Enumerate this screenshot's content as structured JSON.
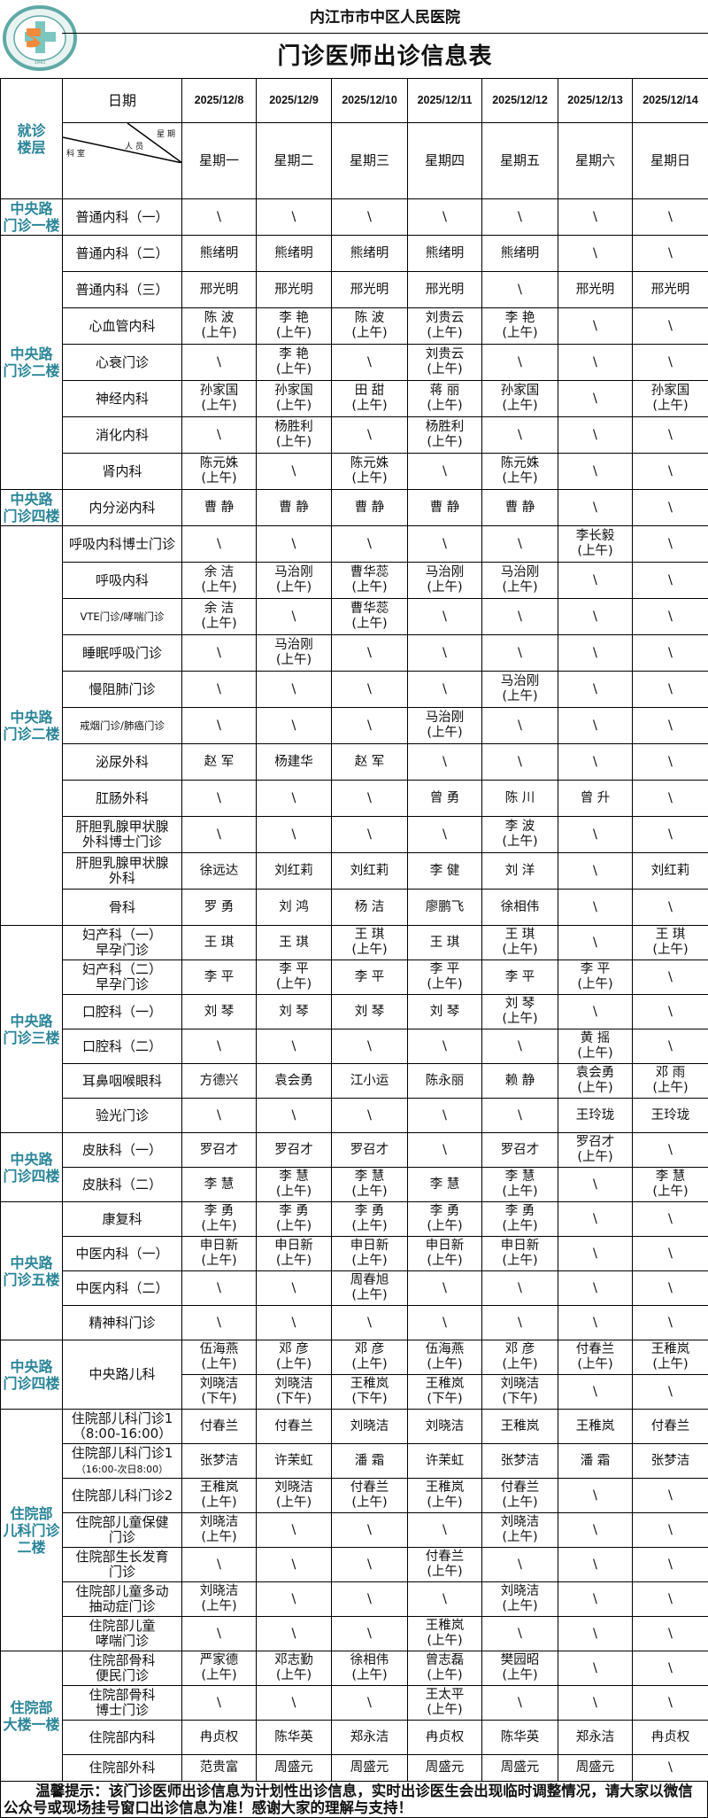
{
  "header": {
    "hospital_name": "内江市市中区人民医院",
    "title": "门诊医师出诊信息表",
    "logo_text": "内江市市中区人民医院",
    "logo_year": "1943",
    "accent_color": "#2a8598"
  },
  "table_header": {
    "floor_label": "就诊\n楼层",
    "date_label": "日期",
    "diag_weekday": "星期",
    "diag_staff": "人员",
    "diag_dept": "科室",
    "dates": [
      "2025/12/8",
      "2025/12/9",
      "2025/12/10",
      "2025/12/11",
      "2025/12/12",
      "2025/12/13",
      "2025/12/14"
    ],
    "weekdays": [
      "星期一",
      "星期二",
      "星期三",
      "星期四",
      "星期五",
      "星期六",
      "星期日"
    ]
  },
  "groups": [
    {
      "floor": "中央路\n门诊一楼",
      "rows": [
        {
          "dept": "普通内科（一）",
          "cells": [
            "\\",
            "\\",
            "\\",
            "\\",
            "\\",
            "\\",
            "\\"
          ]
        }
      ]
    },
    {
      "floor": "中央路\n门诊二楼",
      "rows": [
        {
          "dept": "普通内科（二）",
          "cells": [
            "熊绪明",
            "熊绪明",
            "熊绪明",
            "熊绪明",
            "熊绪明",
            "\\",
            "\\"
          ]
        },
        {
          "dept": "普通内科（三）",
          "cells": [
            "邢光明",
            "邢光明",
            "邢光明",
            "邢光明",
            "\\",
            "邢光明",
            "邢光明"
          ]
        },
        {
          "dept": "心血管内科",
          "cells": [
            "陈 波\n(上午)",
            "李 艳\n(上午)",
            "陈 波\n(上午)",
            "刘贵云\n(上午)",
            "李 艳\n(上午)",
            "\\",
            "\\"
          ]
        },
        {
          "dept": "心衰门诊",
          "cells": [
            "\\",
            "李 艳\n(上午)",
            "\\",
            "刘贵云\n(上午)",
            "\\",
            "\\",
            "\\"
          ]
        },
        {
          "dept": "神经内科",
          "cells": [
            "孙家国\n(上午)",
            "孙家国\n(上午)",
            "田 甜\n(上午)",
            "蒋 丽\n(上午)",
            "孙家国\n(上午)",
            "\\",
            "孙家国\n(上午)"
          ]
        },
        {
          "dept": "消化内科",
          "cells": [
            "\\",
            "杨胜利\n(上午)",
            "\\",
            "杨胜利\n(上午)",
            "\\",
            "\\",
            "\\"
          ]
        },
        {
          "dept": "肾内科",
          "cells": [
            "陈元姝\n(上午)",
            "\\",
            "陈元姝\n(上午)",
            "\\",
            "陈元姝\n(上午)",
            "\\",
            "\\"
          ]
        }
      ]
    },
    {
      "floor": "中央路\n门诊四楼",
      "rows": [
        {
          "dept": "内分泌内科",
          "cells": [
            "曹 静",
            "曹 静",
            "曹 静",
            "曹 静",
            "曹 静",
            "\\",
            "\\"
          ]
        }
      ]
    },
    {
      "floor": "中央路\n门诊二楼",
      "rows": [
        {
          "dept": "呼吸内科博士门诊",
          "cells": [
            "\\",
            "\\",
            "\\",
            "\\",
            "\\",
            "李长毅\n(上午)",
            "\\"
          ]
        },
        {
          "dept": "呼吸内科",
          "cells": [
            "余 洁\n(上午)",
            "马治刚\n(上午)",
            "曹华蕊\n(上午)",
            "马治刚\n(上午)",
            "马治刚\n(上午)",
            "\\",
            "\\"
          ]
        },
        {
          "dept": "VTE门诊/哮喘门诊",
          "small": true,
          "cells": [
            "余 洁\n(上午)",
            "\\",
            "曹华蕊\n(上午)",
            "\\",
            "\\",
            "\\",
            "\\"
          ]
        },
        {
          "dept": "睡眠呼吸门诊",
          "cells": [
            "\\",
            "马治刚\n(上午)",
            "\\",
            "\\",
            "\\",
            "\\",
            "\\"
          ]
        },
        {
          "dept": "慢阻肺门诊",
          "cells": [
            "\\",
            "\\",
            "\\",
            "\\",
            "马治刚\n(上午)",
            "\\",
            "\\"
          ]
        },
        {
          "dept": "戒烟门诊/肺癌门诊",
          "small": true,
          "cells": [
            "\\",
            "\\",
            "\\",
            "马治刚\n(上午)",
            "\\",
            "\\",
            "\\"
          ]
        },
        {
          "dept": "泌尿外科",
          "cells": [
            "赵 军",
            "杨建华",
            "赵 军",
            "\\",
            "\\",
            "\\",
            "\\"
          ]
        },
        {
          "dept": "肛肠外科",
          "cells": [
            "\\",
            "\\",
            "\\",
            "曾 勇",
            "陈 川",
            "曾 升",
            "\\"
          ]
        },
        {
          "dept": "肝胆乳腺甲状腺\n外科博士门诊",
          "cells": [
            "\\",
            "\\",
            "\\",
            "\\",
            "李 波\n(上午)",
            "\\",
            "\\"
          ]
        },
        {
          "dept": "肝胆乳腺甲状腺\n外科",
          "cells": [
            "徐远达",
            "刘红莉",
            "刘红莉",
            "李 健",
            "刘 洋",
            "\\",
            "刘红莉"
          ]
        },
        {
          "dept": "骨科",
          "cells": [
            "罗 勇",
            "刘 鸿",
            "杨 洁",
            "廖鹏飞",
            "徐相伟",
            "\\",
            "\\"
          ]
        }
      ]
    },
    {
      "floor": "中央路\n门诊三楼",
      "rows": [
        {
          "dept": "妇产科（一）\n早孕门诊",
          "cells": [
            "王 琪",
            "王 琪",
            "王 琪\n(上午)",
            "王 琪",
            "王 琪\n(上午)",
            "\\",
            "王 琪\n(上午)"
          ]
        },
        {
          "dept": "妇产科（二）\n早孕门诊",
          "cells": [
            "李 平",
            "李 平\n(上午)",
            "李 平",
            "李 平\n(上午)",
            "李 平",
            "李 平\n(上午)",
            "\\"
          ]
        },
        {
          "dept": "口腔科（一）",
          "cells": [
            "刘 琴",
            "刘 琴",
            "刘 琴",
            "刘 琴",
            "刘 琴\n(上午)",
            "\\",
            "\\"
          ]
        },
        {
          "dept": "口腔科（二）",
          "cells": [
            "\\",
            "\\",
            "\\",
            "\\",
            "\\",
            "黄 摇\n(上午)",
            "\\"
          ]
        },
        {
          "dept": "耳鼻咽喉眼科",
          "cells": [
            "方德兴",
            "袁会勇",
            "江小运",
            "陈永丽",
            "赖 静",
            "袁会勇\n(上午)",
            "邓 雨\n(上午)"
          ]
        },
        {
          "dept": "验光门诊",
          "cells": [
            "\\",
            "\\",
            "\\",
            "\\",
            "\\",
            "王玲珑",
            "王玲珑"
          ]
        }
      ]
    },
    {
      "floor": "中央路\n门诊四楼",
      "rows": [
        {
          "dept": "皮肤科（一）",
          "cells": [
            "罗召才",
            "罗召才",
            "罗召才",
            "\\",
            "罗召才",
            "罗召才\n(上午)",
            "\\"
          ]
        },
        {
          "dept": "皮肤科（二）",
          "cells": [
            "李 慧",
            "李 慧\n(上午)",
            "李 慧\n(上午)",
            "李 慧",
            "李 慧\n(上午)",
            "\\",
            "李 慧\n(上午)"
          ]
        }
      ]
    },
    {
      "floor": "中央路\n门诊五楼",
      "rows": [
        {
          "dept": "康复科",
          "cells": [
            "李 勇\n(上午)",
            "李 勇\n(上午)",
            "李 勇\n(上午)",
            "李 勇\n(上午)",
            "李 勇\n(上午)",
            "\\",
            "\\"
          ]
        },
        {
          "dept": "中医内科（一）",
          "cells": [
            "申日新\n(上午)",
            "申日新\n(上午)",
            "申日新\n(上午)",
            "申日新\n(上午)",
            "申日新\n(上午)",
            "\\",
            "\\"
          ]
        },
        {
          "dept": "中医内科（二）",
          "cells": [
            "\\",
            "\\",
            "周春旭\n(上午)",
            "\\",
            "\\",
            "\\",
            "\\"
          ]
        },
        {
          "dept": "精神科门诊",
          "cells": [
            "\\",
            "\\",
            "\\",
            "\\",
            "\\",
            "\\",
            "\\"
          ]
        }
      ]
    },
    {
      "floor": "中央路\n门诊四楼",
      "rows": [
        {
          "dept": "中央路儿科",
          "slots": [
            [
              "伍海燕\n(上午)",
              "邓 彦\n(上午)",
              "邓 彦\n(上午)",
              "伍海燕\n(上午)",
              "邓 彦\n(上午)",
              "付春兰\n(上午)",
              "王稚岚\n(上午)"
            ],
            [
              "刘晓洁\n(下午)",
              "刘晓洁\n(下午)",
              "王稚岚\n(下午)",
              "王稚岚\n(下午)",
              "刘晓洁\n(下午)",
              "\\",
              "\\"
            ]
          ]
        }
      ]
    },
    {
      "floor": "住院部\n儿科门诊\n二楼",
      "rows": [
        {
          "dept": "住院部儿科门诊1\n（8:00-16:00）",
          "cells": [
            "付春兰",
            "付春兰",
            "刘晓洁",
            "刘晓洁",
            "王稚岚",
            "王稚岚",
            "付春兰"
          ]
        },
        {
          "dept": "住院部儿科门诊1",
          "dept_sub": "（16:00-次日8:00）",
          "cells": [
            "张梦洁",
            "许茉虹",
            "潘 霜",
            "许茉虹",
            "张梦洁",
            "潘 霜",
            "张梦洁"
          ]
        },
        {
          "dept": "住院部儿科门诊2",
          "cells": [
            "王稚岚\n(上午)",
            "刘晓洁\n(上午)",
            "付春兰\n(上午)",
            "王稚岚\n(上午)",
            "付春兰\n(上午)",
            "\\",
            "\\"
          ]
        },
        {
          "dept": "住院部儿童保健\n门诊",
          "cells": [
            "刘晓洁\n(上午)",
            "\\",
            "\\",
            "\\",
            "刘晓洁\n(上午)",
            "\\",
            "\\"
          ]
        },
        {
          "dept": "住院部生长发育\n门诊",
          "cells": [
            "\\",
            "\\",
            "\\",
            "付春兰\n(上午)",
            "\\",
            "\\",
            "\\"
          ]
        },
        {
          "dept": "住院部儿童多动\n抽动症门诊",
          "cells": [
            "刘晓洁\n(上午)",
            "\\",
            "\\",
            "\\",
            "刘晓洁\n(上午)",
            "\\",
            "\\"
          ]
        },
        {
          "dept": "住院部儿童\n哮喘门诊",
          "cells": [
            "\\",
            "\\",
            "\\",
            "王稚岚\n(上午)",
            "\\",
            "\\",
            "\\"
          ]
        }
      ]
    },
    {
      "floor": "住院部\n大楼一楼",
      "rows": [
        {
          "dept": "住院部骨科\n便民门诊",
          "cells": [
            "严家德\n(上午)",
            "邓志勤\n(上午)",
            "徐相伟\n(上午)",
            "曾志磊\n(上午)",
            "樊园昭\n(上午)",
            "\\",
            "\\"
          ]
        },
        {
          "dept": "住院部骨科\n博士门诊",
          "cells": [
            "\\",
            "\\",
            "\\",
            "王太平\n(上午)",
            "\\",
            "\\",
            "\\"
          ]
        },
        {
          "dept": "住院部内科",
          "cells": [
            "冉贞权",
            "陈华英",
            "郑永洁",
            "冉贞权",
            "陈华英",
            "郑永洁",
            "冉贞权"
          ]
        },
        {
          "dept": "住院部外科",
          "cells": [
            "范贵富",
            "周盛元",
            "周盛元",
            "周盛元",
            "周盛元",
            "周盛元",
            "\\"
          ]
        }
      ]
    }
  ],
  "footer": {
    "notice": "温馨提示：该门诊医师出诊信息为计划性出诊信息，实时出诊医生会出现临时调整情况，请大家以微信公众号或现场挂号窗口出诊信息为准！感谢大家的理解与支持！"
  }
}
